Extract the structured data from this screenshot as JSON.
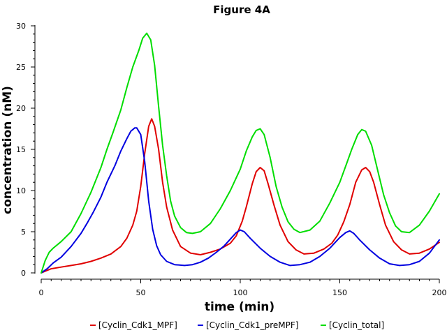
{
  "chart_data": {
    "type": "line",
    "title": "Figure 4A",
    "xlabel": "time (min)",
    "ylabel": "concentration (nM)",
    "xlim": [
      0,
      200
    ],
    "ylim": [
      0,
      30
    ],
    "xticks": [
      0,
      50,
      100,
      150,
      200
    ],
    "yticks": [
      0,
      5,
      10,
      15,
      20,
      25,
      30
    ],
    "grid": false,
    "legend_position": "bottom",
    "series": [
      {
        "name": "[Cyclin_Cdk1_MPF]",
        "color": "#e00000",
        "points": [
          [
            0,
            0
          ],
          [
            5,
            0.5
          ],
          [
            10,
            0.7
          ],
          [
            15,
            0.9
          ],
          [
            20,
            1.1
          ],
          [
            25,
            1.4
          ],
          [
            30,
            1.8
          ],
          [
            35,
            2.3
          ],
          [
            40,
            3.2
          ],
          [
            43,
            4.2
          ],
          [
            46,
            5.8
          ],
          [
            48,
            7.5
          ],
          [
            50,
            10.5
          ],
          [
            52,
            14.5
          ],
          [
            54,
            17.8
          ],
          [
            55.5,
            18.7
          ],
          [
            57,
            17.8
          ],
          [
            59,
            15.0
          ],
          [
            61,
            11.0
          ],
          [
            63,
            8.0
          ],
          [
            66,
            5.2
          ],
          [
            70,
            3.2
          ],
          [
            75,
            2.4
          ],
          [
            80,
            2.2
          ],
          [
            85,
            2.5
          ],
          [
            90,
            2.9
          ],
          [
            95,
            3.6
          ],
          [
            98,
            4.5
          ],
          [
            101,
            6.3
          ],
          [
            103,
            8.0
          ],
          [
            106,
            10.8
          ],
          [
            108,
            12.3
          ],
          [
            110,
            12.8
          ],
          [
            112,
            12.4
          ],
          [
            114,
            10.8
          ],
          [
            117,
            8.2
          ],
          [
            120,
            5.8
          ],
          [
            124,
            3.8
          ],
          [
            128,
            2.8
          ],
          [
            132,
            2.3
          ],
          [
            137,
            2.4
          ],
          [
            142,
            2.9
          ],
          [
            146,
            3.6
          ],
          [
            149,
            4.6
          ],
          [
            152,
            6.2
          ],
          [
            155,
            8.3
          ],
          [
            158,
            11.0
          ],
          [
            161,
            12.5
          ],
          [
            163,
            12.8
          ],
          [
            165,
            12.3
          ],
          [
            167,
            11.0
          ],
          [
            170,
            8.3
          ],
          [
            173,
            5.8
          ],
          [
            177,
            3.8
          ],
          [
            181,
            2.8
          ],
          [
            185,
            2.3
          ],
          [
            190,
            2.4
          ],
          [
            195,
            2.9
          ],
          [
            200,
            3.7
          ]
        ]
      },
      {
        "name": "[Cyclin_Cdk1_preMPF]",
        "color": "#0000e0",
        "points": [
          [
            0,
            0
          ],
          [
            3,
            0.5
          ],
          [
            6,
            1.2
          ],
          [
            10,
            1.9
          ],
          [
            15,
            3.2
          ],
          [
            20,
            4.8
          ],
          [
            23,
            6.0
          ],
          [
            26,
            7.3
          ],
          [
            30,
            9.2
          ],
          [
            33,
            11.0
          ],
          [
            37,
            13.0
          ],
          [
            40,
            14.8
          ],
          [
            43,
            16.3
          ],
          [
            45,
            17.2
          ],
          [
            47,
            17.6
          ],
          [
            48,
            17.6
          ],
          [
            50,
            16.8
          ],
          [
            52,
            13.5
          ],
          [
            54,
            8.7
          ],
          [
            56,
            5.3
          ],
          [
            58,
            3.3
          ],
          [
            60,
            2.2
          ],
          [
            63,
            1.4
          ],
          [
            67,
            1.0
          ],
          [
            72,
            0.9
          ],
          [
            76,
            1.0
          ],
          [
            80,
            1.3
          ],
          [
            84,
            1.8
          ],
          [
            88,
            2.5
          ],
          [
            92,
            3.3
          ],
          [
            95,
            4.1
          ],
          [
            98,
            4.9
          ],
          [
            100,
            5.2
          ],
          [
            102,
            5.0
          ],
          [
            105,
            4.2
          ],
          [
            110,
            3.0
          ],
          [
            115,
            2.0
          ],
          [
            120,
            1.3
          ],
          [
            125,
            0.9
          ],
          [
            130,
            1.0
          ],
          [
            135,
            1.3
          ],
          [
            140,
            2.0
          ],
          [
            145,
            3.0
          ],
          [
            150,
            4.3
          ],
          [
            153,
            4.9
          ],
          [
            155,
            5.1
          ],
          [
            157,
            4.8
          ],
          [
            160,
            4.0
          ],
          [
            165,
            2.8
          ],
          [
            170,
            1.8
          ],
          [
            175,
            1.1
          ],
          [
            180,
            0.9
          ],
          [
            185,
            1.0
          ],
          [
            190,
            1.4
          ],
          [
            195,
            2.4
          ],
          [
            200,
            4.0
          ]
        ]
      },
      {
        "name": "[Cyclin_total]",
        "color": "#00dd00",
        "points": [
          [
            0,
            0
          ],
          [
            2,
            1.5
          ],
          [
            4,
            2.5
          ],
          [
            6,
            3.0
          ],
          [
            10,
            3.8
          ],
          [
            15,
            5.0
          ],
          [
            20,
            7.2
          ],
          [
            25,
            9.8
          ],
          [
            30,
            12.8
          ],
          [
            33,
            15.0
          ],
          [
            36,
            17.0
          ],
          [
            40,
            19.8
          ],
          [
            43,
            22.5
          ],
          [
            46,
            25.0
          ],
          [
            49,
            27.0
          ],
          [
            51,
            28.5
          ],
          [
            53,
            29.1
          ],
          [
            55,
            28.3
          ],
          [
            57,
            25.2
          ],
          [
            59,
            20.2
          ],
          [
            61,
            15.5
          ],
          [
            63,
            11.8
          ],
          [
            65,
            8.7
          ],
          [
            67,
            6.9
          ],
          [
            70,
            5.5
          ],
          [
            73,
            4.9
          ],
          [
            76,
            4.8
          ],
          [
            80,
            5.0
          ],
          [
            85,
            6.0
          ],
          [
            90,
            7.8
          ],
          [
            95,
            10.0
          ],
          [
            100,
            12.6
          ],
          [
            103,
            14.8
          ],
          [
            106,
            16.5
          ],
          [
            108,
            17.3
          ],
          [
            110,
            17.5
          ],
          [
            112,
            16.8
          ],
          [
            115,
            14.0
          ],
          [
            118,
            10.5
          ],
          [
            121,
            8.0
          ],
          [
            124,
            6.2
          ],
          [
            127,
            5.3
          ],
          [
            130,
            4.9
          ],
          [
            135,
            5.2
          ],
          [
            140,
            6.3
          ],
          [
            145,
            8.5
          ],
          [
            150,
            11.0
          ],
          [
            153,
            13.0
          ],
          [
            156,
            15.0
          ],
          [
            159,
            16.8
          ],
          [
            161,
            17.4
          ],
          [
            163,
            17.2
          ],
          [
            166,
            15.5
          ],
          [
            169,
            12.5
          ],
          [
            172,
            9.5
          ],
          [
            175,
            7.3
          ],
          [
            178,
            5.7
          ],
          [
            181,
            5.0
          ],
          [
            185,
            4.9
          ],
          [
            190,
            5.8
          ],
          [
            195,
            7.5
          ],
          [
            200,
            9.6
          ]
        ]
      }
    ]
  }
}
